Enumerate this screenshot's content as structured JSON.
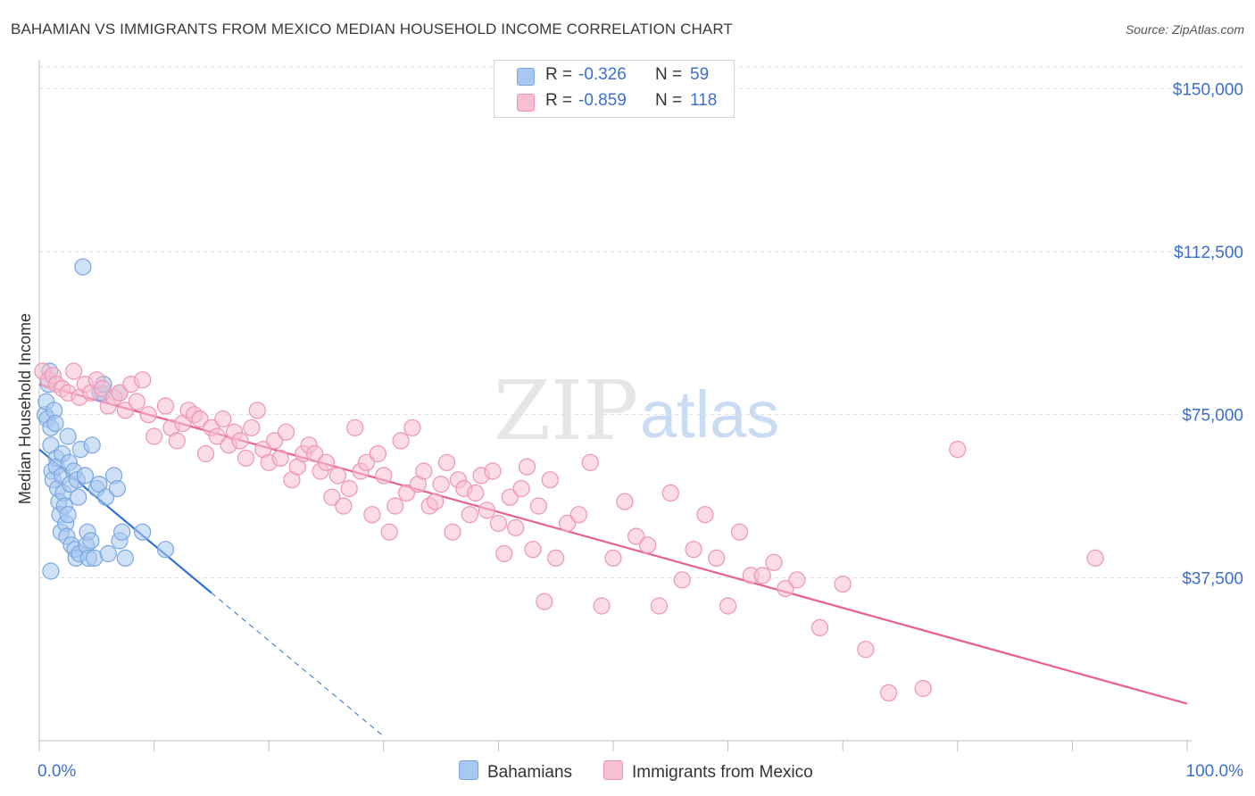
{
  "header": {
    "title": "BAHAMIAN VS IMMIGRANTS FROM MEXICO MEDIAN HOUSEHOLD INCOME CORRELATION CHART",
    "source": "Source: ZipAtlas.com"
  },
  "watermark": {
    "zip": "ZIP",
    "atlas": "atlas"
  },
  "legend_top": [
    {
      "r_label": "R =",
      "r_value": "-0.326",
      "n_label": "N =",
      "n_value": "59",
      "color": "#a8c8f0",
      "border": "#7aa6e0"
    },
    {
      "r_label": "R =",
      "r_value": "-0.859",
      "n_label": "N =",
      "n_value": "118",
      "color": "#f8bfd2",
      "border": "#ee93b3"
    }
  ],
  "legend_bottom": [
    {
      "label": "Bahamians",
      "color": "#a8c8f0",
      "border": "#7aa6e0"
    },
    {
      "label": "Immigrants from Mexico",
      "color": "#f8bfd2",
      "border": "#ee93b3"
    }
  ],
  "chart_data": {
    "type": "scatter",
    "title": "BAHAMIAN VS IMMIGRANTS FROM MEXICO MEDIAN HOUSEHOLD INCOME CORRELATION CHART",
    "xlabel": "",
    "ylabel": "Median Household Income",
    "xlim": [
      0,
      100
    ],
    "ylim": [
      0,
      155000
    ],
    "x_tick_labels": [
      "0.0%",
      "100.0%"
    ],
    "y_ticks": [
      37500,
      75000,
      112500,
      150000
    ],
    "y_tick_labels": [
      "$37,500",
      "$75,000",
      "$112,500",
      "$150,000"
    ],
    "grid": "horizontal dashed",
    "legend_position": "top-center and bottom",
    "series": [
      {
        "name": "Bahamians",
        "color": "#a8c8f0",
        "edge": "#7aa6e0",
        "line_color": "#2f72d6",
        "trend": {
          "x0": 0,
          "y0": 67000,
          "x1": 15,
          "y1": 34000,
          "dash_to_x": 30,
          "dash_to_y": 1000
        },
        "x": [
          0.5,
          0.6,
          0.7,
          0.8,
          0.9,
          1.0,
          1.0,
          1.1,
          1.2,
          1.3,
          1.4,
          1.5,
          1.5,
          1.6,
          1.7,
          1.8,
          1.9,
          2.0,
          2.0,
          2.1,
          2.2,
          2.3,
          2.4,
          2.5,
          2.6,
          2.7,
          2.8,
          3.0,
          3.1,
          3.2,
          3.3,
          3.4,
          3.5,
          3.6,
          3.8,
          4.0,
          4.1,
          4.2,
          4.3,
          4.5,
          4.6,
          4.8,
          5.0,
          5.2,
          5.3,
          5.5,
          5.6,
          5.8,
          6.0,
          6.5,
          6.8,
          7.0,
          7.2,
          7.5,
          7.0,
          1.0,
          2.5,
          9.0,
          11.0
        ],
        "y": [
          75000,
          78000,
          74000,
          82000,
          85000,
          72000,
          68000,
          62000,
          60000,
          76000,
          73000,
          65000,
          63000,
          58000,
          55000,
          52000,
          48000,
          66000,
          61000,
          57000,
          54000,
          50000,
          47000,
          70000,
          64000,
          59000,
          45000,
          62000,
          44000,
          42000,
          60000,
          56000,
          43000,
          67000,
          109000,
          61000,
          45000,
          48000,
          42000,
          46000,
          68000,
          42000,
          58000,
          59000,
          80000,
          80000,
          82000,
          56000,
          43000,
          61000,
          58000,
          46000,
          48000,
          42000,
          80000,
          39000,
          52000,
          48000,
          44000
        ]
      },
      {
        "name": "Immigrants from Mexico",
        "color": "#f8bfd2",
        "edge": "#ee93b3",
        "line_color": "#e8608e",
        "trend": {
          "x0": 0,
          "y0": 82000,
          "x1": 100,
          "y1": 8500
        },
        "x": [
          0.3,
          0.8,
          1.2,
          1.5,
          2.0,
          2.5,
          3.0,
          3.5,
          4.0,
          4.5,
          5.0,
          5.5,
          6.0,
          6.5,
          7.0,
          7.5,
          8.0,
          8.5,
          9.0,
          9.5,
          10.0,
          11.0,
          11.5,
          12.0,
          12.5,
          13.0,
          13.5,
          14.0,
          14.5,
          15.0,
          15.5,
          16.0,
          16.5,
          17.0,
          17.5,
          18.0,
          18.5,
          19.0,
          19.5,
          20.0,
          20.5,
          21.0,
          21.5,
          22.0,
          22.5,
          23.0,
          23.5,
          24.0,
          24.5,
          25.0,
          25.5,
          26.0,
          26.5,
          27.0,
          27.5,
          28.0,
          28.5,
          29.0,
          29.5,
          30.0,
          30.5,
          31.0,
          31.5,
          32.0,
          32.5,
          33.0,
          33.5,
          34.0,
          34.5,
          35.0,
          35.5,
          36.0,
          36.5,
          37.0,
          37.5,
          38.0,
          38.5,
          39.0,
          39.5,
          40.0,
          40.5,
          41.0,
          41.5,
          42.0,
          42.5,
          43.0,
          43.5,
          44.0,
          44.5,
          45.0,
          46.0,
          47.0,
          48.0,
          49.0,
          50.0,
          51.0,
          52.0,
          53.0,
          54.0,
          55.0,
          56.0,
          57.0,
          58.0,
          59.0,
          60.0,
          61.0,
          62.0,
          63.0,
          64.0,
          65.0,
          66.0,
          68.0,
          70.0,
          72.0,
          74.0,
          77.0,
          92.0,
          80.0
        ],
        "y": [
          85000,
          83000,
          84000,
          82000,
          81000,
          80000,
          85000,
          79000,
          82000,
          80000,
          83000,
          81000,
          77000,
          79000,
          80000,
          76000,
          82000,
          78000,
          83000,
          75000,
          70000,
          77000,
          72000,
          69000,
          73000,
          76000,
          75000,
          74000,
          66000,
          72000,
          70000,
          74000,
          68000,
          71000,
          69000,
          65000,
          72000,
          76000,
          67000,
          64000,
          69000,
          65000,
          71000,
          60000,
          63000,
          66000,
          68000,
          66000,
          62000,
          64000,
          56000,
          61000,
          54000,
          58000,
          72000,
          62000,
          64000,
          52000,
          66000,
          61000,
          48000,
          54000,
          69000,
          57000,
          72000,
          59000,
          62000,
          54000,
          55000,
          59000,
          64000,
          48000,
          60000,
          58000,
          52000,
          57000,
          61000,
          53000,
          62000,
          50000,
          43000,
          56000,
          49000,
          58000,
          63000,
          44000,
          54000,
          32000,
          60000,
          42000,
          50000,
          52000,
          64000,
          31000,
          42000,
          55000,
          47000,
          45000,
          31000,
          57000,
          37000,
          44000,
          52000,
          42000,
          31000,
          48000,
          38000,
          38000,
          41000,
          35000,
          37000,
          26000,
          36000,
          21000,
          11000,
          12000,
          42000,
          67000
        ]
      }
    ]
  }
}
